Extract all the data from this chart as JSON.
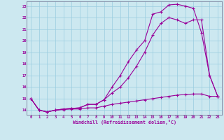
{
  "xlabel": "Windchill (Refroidissement éolien,°C)",
  "background_color": "#cce8f0",
  "grid_color": "#99cce0",
  "line_color": "#990099",
  "xlim": [
    -0.5,
    23.5
  ],
  "ylim": [
    13.6,
    23.4
  ],
  "xticks": [
    0,
    1,
    2,
    3,
    4,
    5,
    6,
    7,
    8,
    9,
    10,
    11,
    12,
    13,
    14,
    15,
    16,
    17,
    18,
    19,
    20,
    21,
    22,
    23
  ],
  "yticks": [
    14,
    15,
    16,
    17,
    18,
    19,
    20,
    21,
    22,
    23
  ],
  "curve1_x": [
    0,
    1,
    2,
    3,
    4,
    5,
    6,
    7,
    8,
    9,
    10,
    11,
    12,
    13,
    14,
    15,
    16,
    17,
    18,
    19,
    20,
    21,
    22,
    23
  ],
  "curve1_y": [
    15.0,
    14.0,
    13.85,
    14.0,
    14.1,
    14.15,
    14.2,
    14.5,
    14.5,
    14.9,
    16.0,
    17.0,
    18.2,
    19.2,
    20.0,
    22.3,
    22.5,
    23.1,
    23.15,
    23.0,
    22.8,
    20.7,
    17.0,
    15.2
  ],
  "curve2_x": [
    0,
    1,
    2,
    3,
    4,
    5,
    6,
    7,
    8,
    9,
    10,
    11,
    12,
    13,
    14,
    15,
    16,
    17,
    18,
    19,
    20,
    21,
    22,
    23
  ],
  "curve2_y": [
    15.0,
    14.0,
    13.85,
    14.0,
    14.1,
    14.15,
    14.2,
    14.5,
    14.5,
    14.9,
    15.5,
    16.0,
    16.8,
    17.8,
    19.0,
    20.5,
    21.5,
    22.0,
    21.8,
    21.5,
    21.8,
    21.8,
    17.0,
    15.2
  ],
  "curve3_x": [
    0,
    1,
    2,
    3,
    4,
    5,
    6,
    7,
    8,
    9,
    10,
    11,
    12,
    13,
    14,
    15,
    16,
    17,
    18,
    19,
    20,
    21,
    22,
    23
  ],
  "curve3_y": [
    15.0,
    14.0,
    13.85,
    14.0,
    14.05,
    14.1,
    14.1,
    14.2,
    14.2,
    14.35,
    14.5,
    14.6,
    14.7,
    14.8,
    14.9,
    15.0,
    15.1,
    15.2,
    15.3,
    15.35,
    15.4,
    15.4,
    15.2,
    15.2
  ]
}
